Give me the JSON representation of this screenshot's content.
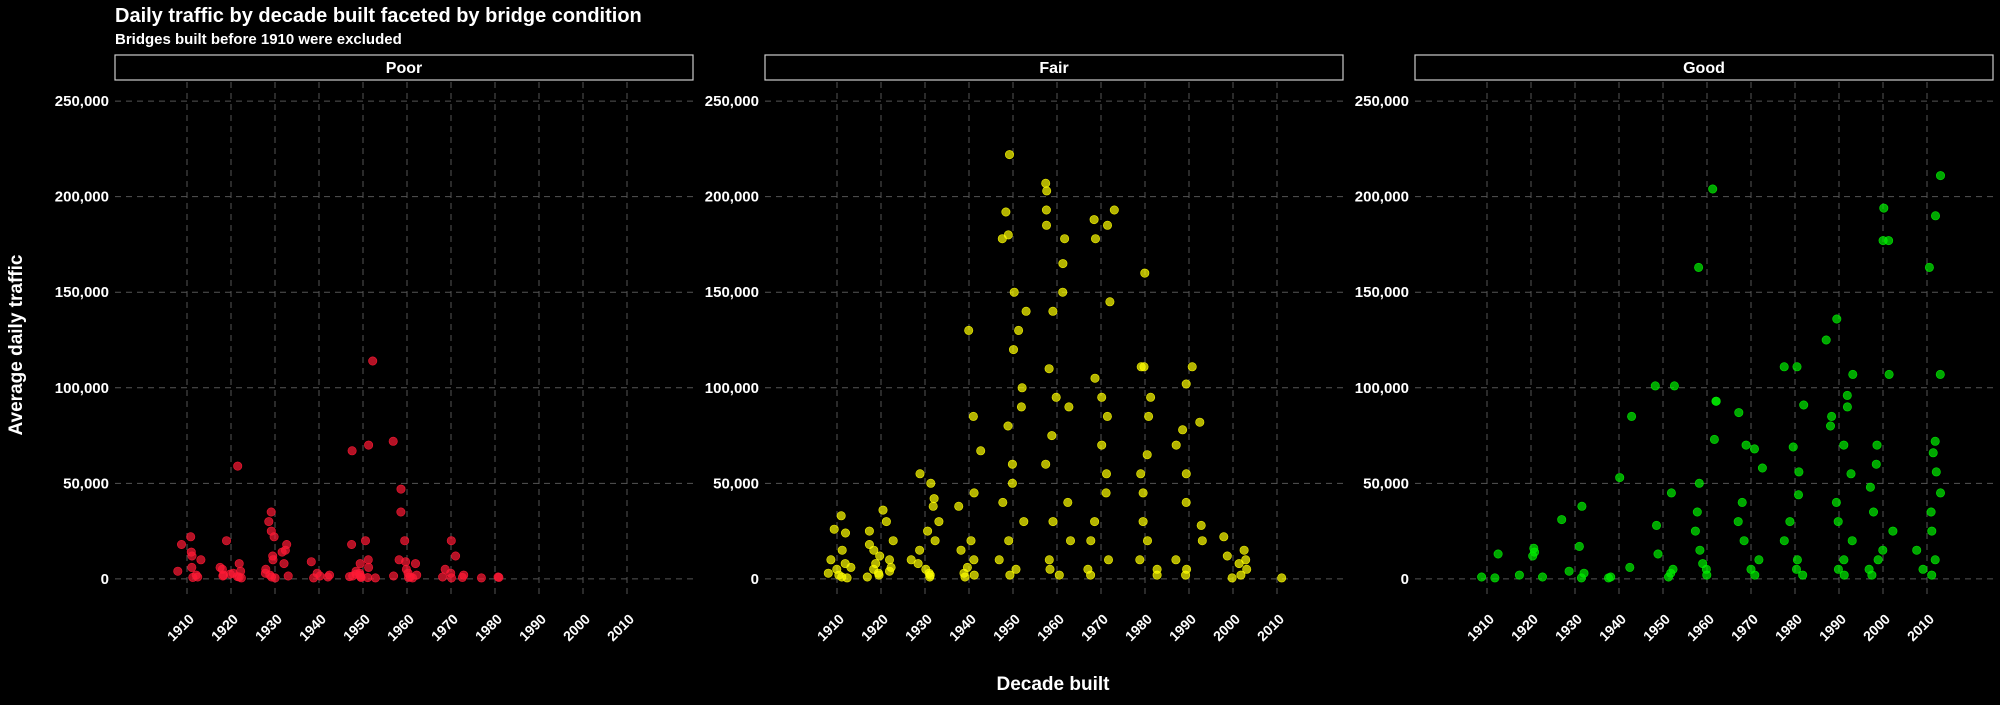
{
  "chart_data": {
    "type": "scatter",
    "title": "Daily traffic by decade built faceted by bridge condition",
    "subtitle": "Bridges built before 1910 were excluded",
    "xlabel": "Decade built",
    "ylabel": "Average daily traffic",
    "ylim": [
      -10000,
      260000
    ],
    "y_ticks": [
      0,
      50000,
      100000,
      150000,
      200000,
      250000
    ],
    "y_tick_labels": [
      "0",
      "50,000",
      "100,000",
      "150,000",
      "200,000",
      "250,000"
    ],
    "x_categories": [
      "1910",
      "1920",
      "1930",
      "1940",
      "1950",
      "1960",
      "1970",
      "1980",
      "1990",
      "2000",
      "2010"
    ],
    "grid": true,
    "legend": "none",
    "facets": [
      {
        "name": "Poor",
        "color": "#ff1a35",
        "points_by_decade": {
          "1910": [
            14000,
            18000,
            22000,
            10000,
            12000,
            6000,
            4000,
            1000,
            800,
            2000
          ],
          "1920": [
            59000,
            20000,
            8000,
            5000,
            3000,
            2000,
            1500,
            1000,
            500,
            4000,
            6000,
            2500,
            1200
          ],
          "1930": [
            35000,
            30000,
            25000,
            18000,
            15000,
            12000,
            10000,
            8000,
            5000,
            3000,
            2000,
            1000,
            500,
            1500,
            22000,
            14000
          ],
          "1940": [
            9000,
            3000,
            2000,
            1000,
            500,
            1500
          ],
          "1950": [
            114000,
            70000,
            67000,
            20000,
            18000,
            10000,
            8000,
            6000,
            4000,
            3000,
            2000,
            1000,
            500,
            800,
            1200,
            2500,
            1500,
            700
          ],
          "1960": [
            72000,
            47000,
            35000,
            20000,
            10000,
            8000,
            5000,
            3000,
            2000,
            1000,
            500,
            1500,
            800,
            9000
          ],
          "1970": [
            20000,
            12000,
            5000,
            3000,
            2000,
            1000,
            500,
            800
          ],
          "1980": [
            1000,
            500,
            800
          ]
        }
      },
      {
        "name": "Fair",
        "color": "#ffff00",
        "points_by_decade": {
          "1910": [
            33000,
            26000,
            24000,
            15000,
            10000,
            8000,
            6000,
            5000,
            3000,
            2000,
            1000,
            500
          ],
          "1920": [
            36000,
            30000,
            25000,
            20000,
            18000,
            15000,
            12000,
            10000,
            8000,
            6000,
            5000,
            4000,
            3000,
            2000,
            1000
          ],
          "1930": [
            55000,
            50000,
            42000,
            38000,
            30000,
            25000,
            20000,
            15000,
            10000,
            8000,
            5000,
            3000,
            2000,
            1000
          ],
          "1940": [
            130000,
            85000,
            67000,
            45000,
            38000,
            20000,
            15000,
            10000,
            6000,
            3000,
            2000,
            1000
          ],
          "1950": [
            222000,
            192000,
            180000,
            178000,
            150000,
            140000,
            130000,
            120000,
            100000,
            90000,
            80000,
            60000,
            50000,
            40000,
            30000,
            20000,
            10000,
            5000,
            2000
          ],
          "1960": [
            207000,
            203000,
            193000,
            185000,
            178000,
            165000,
            150000,
            140000,
            110000,
            95000,
            90000,
            75000,
            60000,
            40000,
            30000,
            20000,
            10000,
            5000,
            2000
          ],
          "1970": [
            193000,
            188000,
            185000,
            178000,
            145000,
            105000,
            95000,
            85000,
            70000,
            55000,
            45000,
            30000,
            20000,
            10000,
            5000,
            2000
          ],
          "1980": [
            160000,
            111000,
            111000,
            95000,
            85000,
            65000,
            55000,
            45000,
            30000,
            20000,
            10000,
            5000,
            2000
          ],
          "1990": [
            111000,
            102000,
            82000,
            78000,
            70000,
            55000,
            40000,
            28000,
            20000,
            10000,
            5000,
            2000
          ],
          "2000": [
            22000,
            15000,
            12000,
            10000,
            8000,
            5000,
            2000,
            500
          ],
          "2010": [
            500
          ]
        }
      },
      {
        "name": "Good",
        "color": "#00ee00",
        "points_by_decade": {
          "1910": [
            13000,
            1000,
            500
          ],
          "1920": [
            16000,
            14000,
            12000,
            2000,
            1000
          ],
          "1930": [
            38000,
            31000,
            17000,
            4000,
            3000,
            500
          ],
          "1940": [
            85000,
            53000,
            6000,
            1000,
            500
          ],
          "1950": [
            101000,
            101000,
            45000,
            28000,
            13000,
            5000,
            3000,
            1000
          ],
          "1960": [
            204000,
            163000,
            93000,
            93000,
            73000,
            50000,
            35000,
            25000,
            15000,
            8000,
            5000,
            2000
          ],
          "1970": [
            87000,
            70000,
            68000,
            58000,
            40000,
            30000,
            20000,
            10000,
            5000,
            2000
          ],
          "1980": [
            111000,
            111000,
            91000,
            69000,
            56000,
            44000,
            30000,
            20000,
            10000,
            5000,
            2000
          ],
          "1990": [
            136000,
            125000,
            107000,
            96000,
            90000,
            85000,
            80000,
            70000,
            55000,
            40000,
            30000,
            20000,
            10000,
            5000,
            2000
          ],
          "2000": [
            194000,
            177000,
            177000,
            107000,
            70000,
            60000,
            48000,
            35000,
            25000,
            15000,
            10000,
            5000,
            2000
          ],
          "2010": [
            211000,
            190000,
            163000,
            107000,
            72000,
            66000,
            56000,
            45000,
            35000,
            25000,
            15000,
            10000,
            5000,
            2000
          ]
        }
      }
    ]
  }
}
